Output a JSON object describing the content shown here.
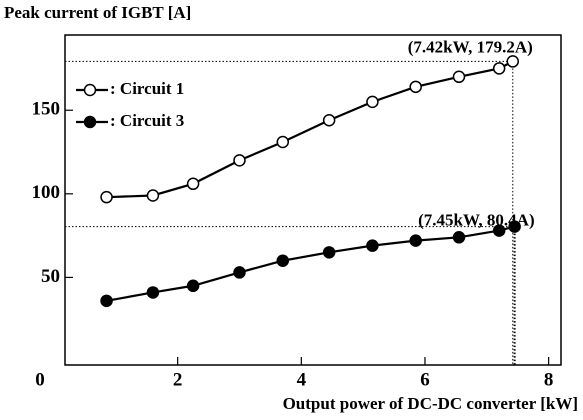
{
  "chart_data": {
    "type": "line",
    "y_label": "Peak current of IGBT [A]",
    "x_label": "Output power of DC-DC converter [kW]",
    "xlim": [
      0,
      8.2
    ],
    "ylim": [
      0,
      195
    ],
    "xticks": [
      0,
      2,
      4,
      6,
      8
    ],
    "yticks": [
      50,
      100,
      150
    ],
    "series": [
      {
        "name": ": Circuit 1",
        "marker": "open",
        "color": "#000",
        "x": [
          0.85,
          1.6,
          2.25,
          3.0,
          3.7,
          4.45,
          5.15,
          5.85,
          6.55,
          7.2,
          7.42
        ],
        "values": [
          98,
          99,
          106,
          120,
          131,
          144,
          155,
          164,
          170,
          175,
          179.2
        ]
      },
      {
        "name": ": Circuit 3",
        "marker": "filled",
        "color": "#000",
        "x": [
          0.85,
          1.6,
          2.25,
          3.0,
          3.7,
          4.45,
          5.15,
          5.85,
          6.55,
          7.2,
          7.45
        ],
        "values": [
          36,
          41,
          45,
          53,
          60,
          65,
          69,
          72,
          74,
          78,
          80.4
        ]
      }
    ],
    "annotations": [
      "(7.42kW, 179.2A)",
      "(7.45kW, 80.4A)"
    ]
  }
}
